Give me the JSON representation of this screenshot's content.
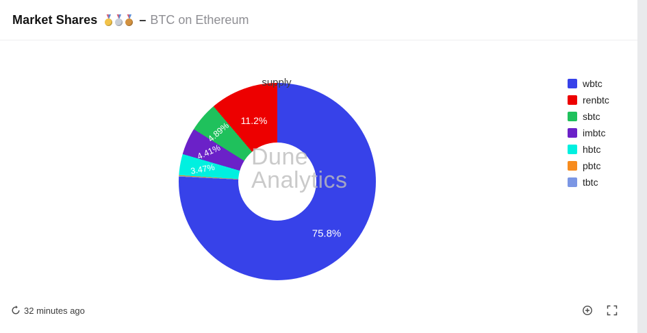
{
  "page": {
    "background": "#e9eaec",
    "card_background": "#ffffff"
  },
  "header": {
    "title": "Market Shares",
    "medals": [
      {
        "name": "gold-medal",
        "color": "#f2c34a"
      },
      {
        "name": "silver-medal",
        "color": "#c8ced8"
      },
      {
        "name": "bronze-medal",
        "color": "#d2913f"
      }
    ],
    "separator": "–",
    "subtitle": "BTC on Ethereum"
  },
  "chart_data": {
    "type": "pie",
    "subtype": "donut",
    "title": "supply",
    "legend_position": "right",
    "series": [
      {
        "name": "wbtc",
        "value": 75.8,
        "label": "75.8%",
        "color": "#3742e9"
      },
      {
        "name": "renbtc",
        "value": 11.2,
        "label": "11.2%",
        "color": "#ed0000"
      },
      {
        "name": "sbtc",
        "value": 4.89,
        "label": "4.89%",
        "color": "#1fc15c"
      },
      {
        "name": "imbtc",
        "value": 4.41,
        "label": "4.41%",
        "color": "#6b21c8"
      },
      {
        "name": "hbtc",
        "value": 3.47,
        "label": "3.47%",
        "color": "#00f0e0"
      },
      {
        "name": "pbtc",
        "value": 0.12,
        "label": "",
        "color": "#f78c1e"
      },
      {
        "name": "tbtc",
        "value": 0.11,
        "label": "",
        "color": "#7b96e4"
      }
    ],
    "draw_order_clockwise_from_top": [
      "wbtc",
      "tbtc",
      "pbtc",
      "hbtc",
      "imbtc",
      "sbtc",
      "renbtc"
    ],
    "labels": {
      "wbtc": "75.8%",
      "renbtc": "11.2%",
      "sbtc": "4.89%",
      "imbtc": "4.41%",
      "hbtc": "3.47%"
    }
  },
  "watermark": {
    "line1": "Dune",
    "line2": "Analytics"
  },
  "footer": {
    "updated_text": "32 minutes ago",
    "refresh_icon": "circular-arrow",
    "zoom_icon": "magnifier-plus",
    "expand_icon": "fullscreen-corners"
  }
}
